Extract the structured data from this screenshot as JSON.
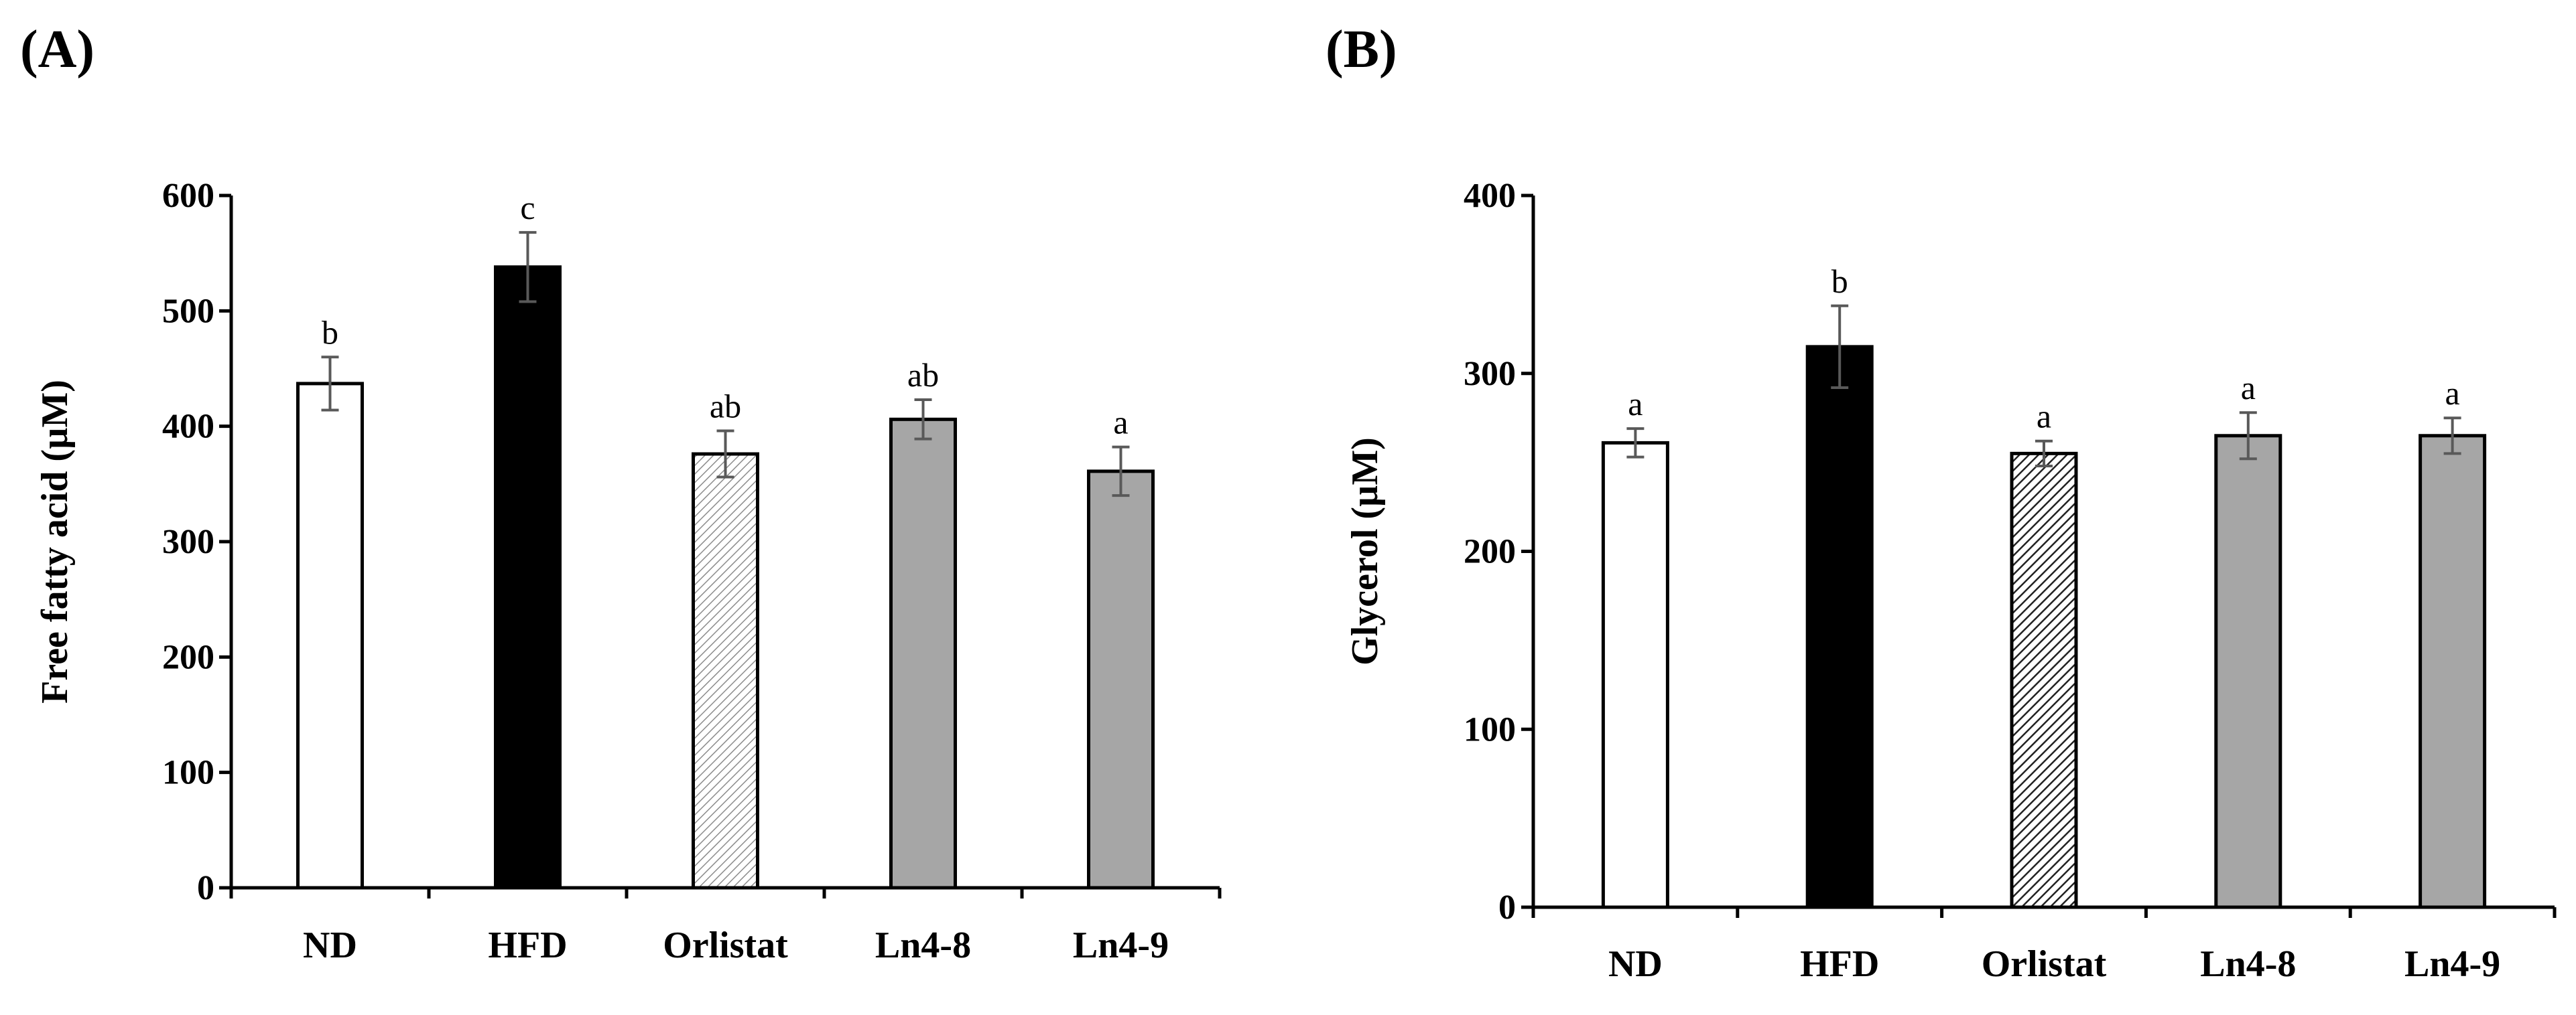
{
  "chart_data": [
    {
      "panel_label": "(A)",
      "type": "bar",
      "categories": [
        "ND",
        "HFD",
        "Orlistat",
        "Ln4-8",
        "Ln4-9"
      ],
      "values": [
        437,
        538,
        376,
        406,
        361
      ],
      "errors": [
        23,
        30,
        20,
        17,
        21
      ],
      "significance": [
        "b",
        "c",
        "ab",
        "ab",
        "a"
      ],
      "fills": [
        "white",
        "black",
        "hatch-light",
        "gray",
        "gray"
      ],
      "ylabel": "Free fatty acid (µM)",
      "xlabel": "",
      "ylim": [
        0,
        600
      ],
      "yticks": [
        "0",
        "100",
        "200",
        "300",
        "400",
        "500",
        "600"
      ],
      "grid": false
    },
    {
      "panel_label": "(B)",
      "type": "bar",
      "categories": [
        "ND",
        "HFD",
        "Orlistat",
        "Ln4-8",
        "Ln4-9"
      ],
      "values": [
        261,
        315,
        255,
        265,
        265
      ],
      "errors": [
        8,
        23,
        7,
        13,
        10
      ],
      "significance": [
        "a",
        "b",
        "a",
        "a",
        "a"
      ],
      "fills": [
        "white",
        "black",
        "hatch-dark",
        "gray",
        "gray"
      ],
      "ylabel": "Glycerol (µM)",
      "xlabel": "",
      "ylim": [
        0,
        400
      ],
      "yticks": [
        "0",
        "100",
        "200",
        "300",
        "400"
      ],
      "grid": false
    }
  ],
  "colors": {
    "axis": "#000000",
    "bar_stroke": "#000000",
    "gray_bar": "#a6a6a6",
    "black_bar": "#000000",
    "white_bar": "#ffffff",
    "error_bar": "#595959"
  }
}
